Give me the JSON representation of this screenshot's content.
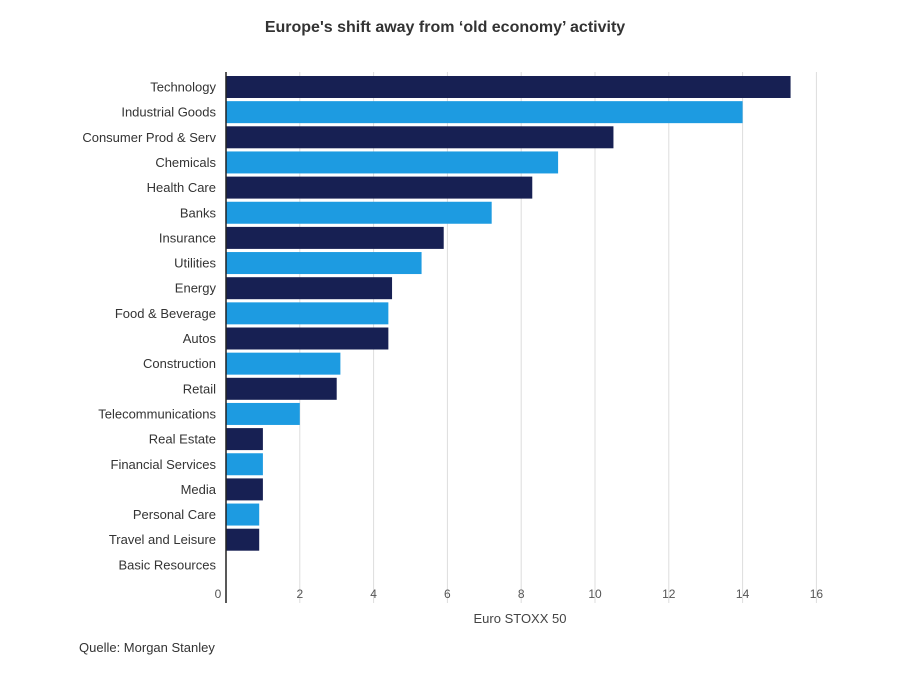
{
  "title": "Europe's shift away from ‘old economy’ activity",
  "source": "Quelle: Morgan Stanley",
  "colors": {
    "dark": "#172053",
    "light": "#1d9be1",
    "grid": "#dddddd",
    "axis": "#222222"
  },
  "chart_data": {
    "type": "bar",
    "orientation": "horizontal",
    "title": "Europe's shift away from ‘old economy’ activity",
    "xlabel": "Euro STOXX 50",
    "ylabel": "",
    "xlim": [
      0,
      16
    ],
    "xticks": [
      "0",
      "2",
      "4",
      "6",
      "8",
      "10",
      "12",
      "14",
      "16"
    ],
    "grid": true,
    "categories": [
      "Technology",
      "Industrial Goods",
      "Consumer Prod & Serv",
      "Chemicals",
      "Health Care",
      "Banks",
      "Insurance",
      "Utilities",
      "Energy",
      "Food & Beverage",
      "Autos",
      "Construction",
      "Retail",
      "Telecommunications",
      "Real Estate",
      "Financial Services",
      "Media",
      "Personal Care",
      "Travel and Leisure",
      "Basic Resources"
    ],
    "values": [
      15.3,
      14.0,
      10.5,
      9.0,
      8.3,
      7.2,
      5.9,
      5.3,
      4.5,
      4.4,
      4.4,
      3.1,
      3.0,
      2.0,
      1.0,
      1.0,
      1.0,
      0.9,
      0.9,
      0
    ]
  }
}
